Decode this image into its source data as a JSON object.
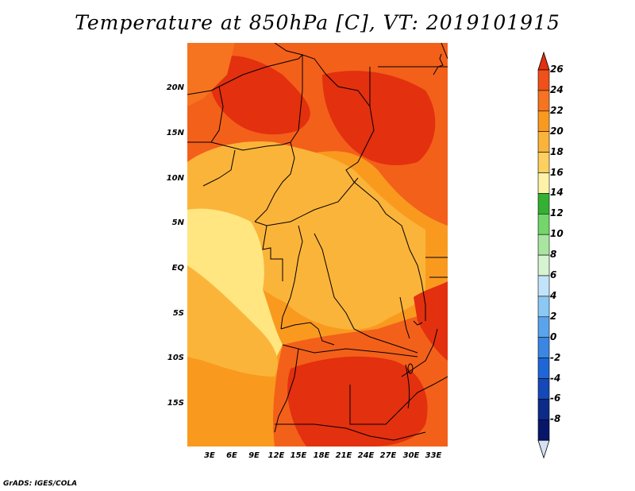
{
  "title": "Temperature at 850hPa [C], VT: 2019101915",
  "credit": "GrADS: IGES/COLA",
  "map": {
    "variable": "Temperature at 850hPa",
    "units": "C",
    "valid_time": "2019101915",
    "lat_labels": [
      "20N",
      "15N",
      "10N",
      "5N",
      "EQ",
      "5S",
      "10S",
      "15S"
    ],
    "lon_labels": [
      "3E",
      "6E",
      "9E",
      "12E",
      "15E",
      "18E",
      "21E",
      "24E",
      "27E",
      "30E",
      "33E"
    ],
    "colors": {
      "ocean_coast": "#ffe680",
      "interior_warm": "#fbb43a",
      "mid_warm": "#f99a1f",
      "hot": "#f3601a",
      "very_hot": "#e3300f",
      "border": "#000000"
    }
  },
  "colorbar": {
    "labels": [
      "26",
      "24",
      "22",
      "20",
      "18",
      "16",
      "14",
      "12",
      "10",
      "8",
      "6",
      "4",
      "2",
      "0",
      "-2",
      "-4",
      "-6",
      "-8"
    ],
    "colors": [
      "#e3300f",
      "#f0501a",
      "#f67420",
      "#f99a1f",
      "#fbb43a",
      "#fdd060",
      "#fff2a8",
      "#34b033",
      "#74d56a",
      "#a8e6a0",
      "#d6f3d2",
      "#c2e4fa",
      "#8cc8f4",
      "#5aa4ec",
      "#3a86e2",
      "#1f66d6",
      "#1548b8",
      "#0c2a88",
      "#08166a",
      "#d6e0f4"
    ]
  }
}
